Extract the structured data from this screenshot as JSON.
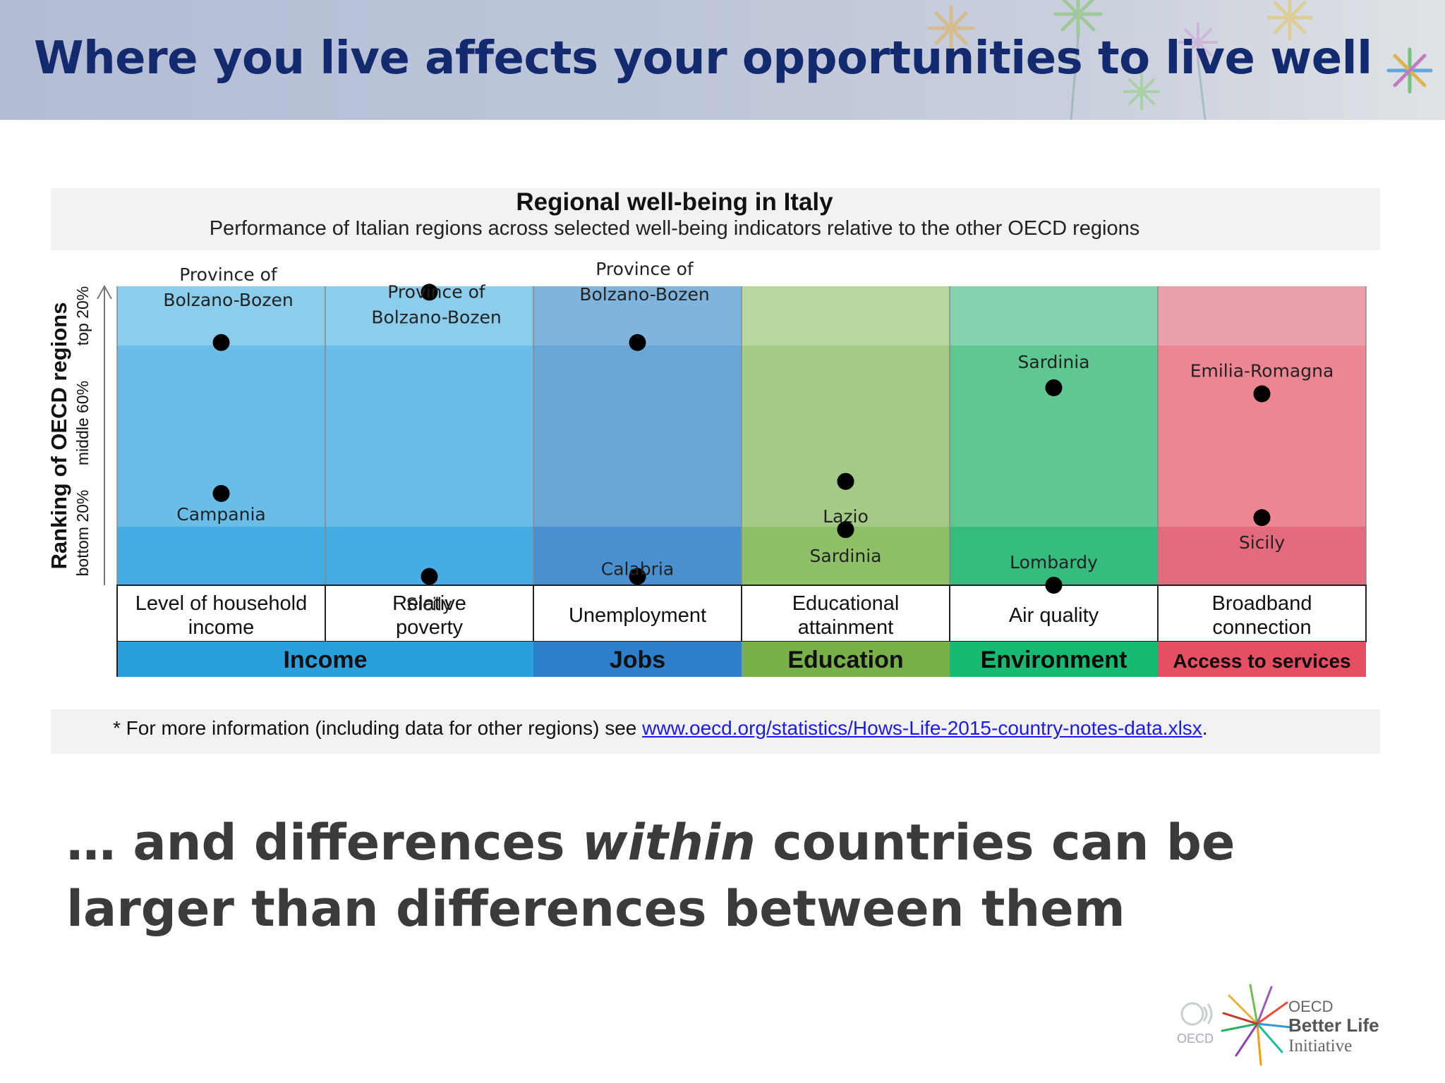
{
  "slide": {
    "title": "Where you live affects your opportunities to live well",
    "bottom_text": {
      "part1": "… and differences ",
      "emphasis": "within",
      "part2": " countries can be larger than differences between them"
    }
  },
  "footnote": {
    "prefix": "* For more information (including data for other regions) see ",
    "link": "www.oecd.org/statistics/Hows-Life-2015-country-notes-data.xlsx",
    "suffix": "."
  },
  "logo": {
    "oecd_text": "OECD",
    "line1": "OECD",
    "line2": "Better Life",
    "line3": "Initiative"
  },
  "chart_data": {
    "type": "scatter",
    "title": "Regional well-being in Italy",
    "subtitle": "Performance of Italian regions across selected well-being indicators relative to the other OECD regions",
    "ylabel": "Ranking of OECD regions",
    "yticks": [
      "bottom 20%",
      "middle 60%",
      "top 20%"
    ],
    "ylim": [
      0,
      100
    ],
    "indicators": [
      "Level of household income",
      "Relative poverty",
      "Unemployment",
      "Educational attainment",
      "Air quality",
      "Broadband connection"
    ],
    "groups": [
      {
        "name": "Income",
        "span": [
          0,
          1
        ],
        "color": "#29a0dc"
      },
      {
        "name": "Jobs",
        "span": [
          2,
          2
        ],
        "color": "#2e7fcb"
      },
      {
        "name": "Education",
        "span": [
          3,
          3
        ],
        "color": "#78b04a"
      },
      {
        "name": "Environment",
        "span": [
          4,
          4
        ],
        "color": "#17ba72"
      },
      {
        "name": "Access to services",
        "span": [
          5,
          5
        ],
        "color": "#e44f63"
      }
    ],
    "colors": {
      "top": [
        "#8ccdeb",
        "#8ccdeb",
        "#80b4dc",
        "#b8d8a0",
        "#83d4af",
        "#eba1ac"
      ],
      "mid": [
        "#69bde7",
        "#69bde7",
        "#6aa7d6",
        "#a4cb85",
        "#5fc792",
        "#ed8693"
      ],
      "bot": [
        "#45ade3",
        "#45ade3",
        "#4a8fce",
        "#8fbf68",
        "#35bb7e",
        "#e46b7d"
      ]
    },
    "points": [
      {
        "indicator": 0,
        "region": "Province of Bolzano-Bozen",
        "y": 81
      },
      {
        "indicator": 0,
        "region": "Campania",
        "y": 31
      },
      {
        "indicator": 1,
        "region": "Province of Bolzano-Bozen",
        "y": 98
      },
      {
        "indicator": 1,
        "region": "Sicily",
        "y": 3
      },
      {
        "indicator": 2,
        "region": "Province of Bolzano-Bozen",
        "y": 81
      },
      {
        "indicator": 2,
        "region": "Calabria",
        "y": 3
      },
      {
        "indicator": 3,
        "region": "Lazio",
        "y": 35
      },
      {
        "indicator": 3,
        "region": "Sardinia",
        "y": 19
      },
      {
        "indicator": 4,
        "region": "Sardinia",
        "y": 66
      },
      {
        "indicator": 4,
        "region": "Lombardy",
        "y": 0
      },
      {
        "indicator": 5,
        "region": "Emilia-Romagna",
        "y": 64
      },
      {
        "indicator": 5,
        "region": "Sicily",
        "y": 23
      }
    ]
  }
}
